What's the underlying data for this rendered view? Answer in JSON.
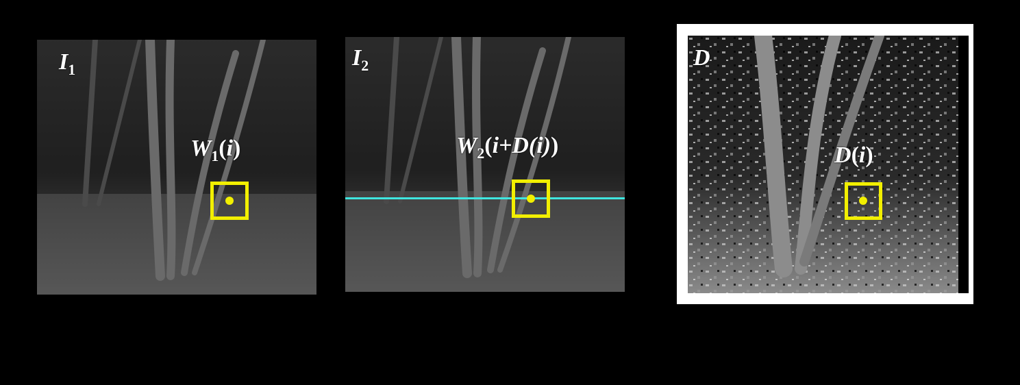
{
  "panels": [
    {
      "id": "I1",
      "label_main": "I",
      "label_sub": "1",
      "window_label": {
        "main": "W",
        "sub": "1",
        "arg_open": "(",
        "arg": "i",
        "arg_close": ")"
      }
    },
    {
      "id": "I2",
      "label_main": "I",
      "label_sub": "2",
      "window_label": {
        "main": "W",
        "sub": "2",
        "arg_open": "(",
        "arg": "i+D(i)",
        "arg_close": ")"
      }
    },
    {
      "id": "D",
      "label_main": "D",
      "label_sub": "",
      "window_label": {
        "main": "D",
        "sub": "",
        "arg_open": "(",
        "arg": "i",
        "arg_close": ")"
      }
    }
  ],
  "colors": {
    "window_box": "#f2ef00",
    "epipolar_line": "#3fe6e0",
    "frame": "#ffffff",
    "background": "#000000"
  }
}
